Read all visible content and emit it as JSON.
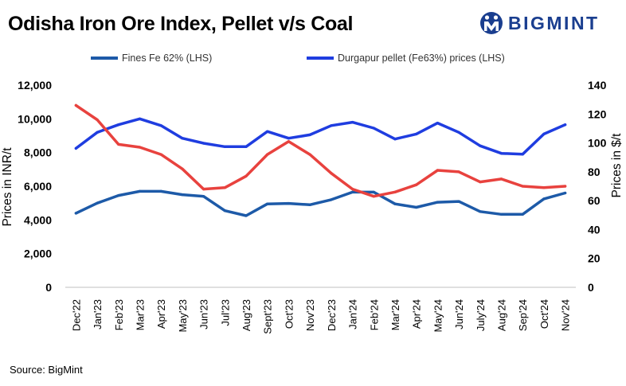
{
  "title": "Odisha Iron Ore Index, Pellet v/s Coal",
  "logo_text": "BIGMINT",
  "source": "Source: BigMint",
  "colors": {
    "fines": "#1d5aa8",
    "pellet": "#1f3de0",
    "coal": "#e8423e"
  },
  "chart_data": {
    "type": "line",
    "categories": [
      "Dec'22",
      "Jan'23",
      "Feb'23",
      "Mar'23",
      "Apr'23",
      "May'23",
      "Jun'23",
      "Jul'23",
      "Aug'23",
      "Sept'23",
      "Oct'23",
      "Nov'23",
      "Dec'23",
      "Jan'24",
      "Feb'24",
      "Mar'24",
      "Apr'24",
      "May'24",
      "Jun'24",
      "July'24",
      "Aug'24",
      "Sep'24",
      "Oct'24",
      "Nov'24"
    ],
    "ylabel": "Prices in INR/t",
    "y2label": "Prices in $/t",
    "ylim": [
      0,
      12000
    ],
    "y2lim": [
      0,
      140
    ],
    "yticks": [
      "0",
      "2,000",
      "4,000",
      "6,000",
      "8,000",
      "10,000",
      "12,000"
    ],
    "y2ticks": [
      "0",
      "20",
      "40",
      "60",
      "80",
      "100",
      "120",
      "140"
    ],
    "legend": [
      "Fines Fe 62% (LHS)",
      "Durgapur pellet (Fe63%) prices (LHS)"
    ],
    "series": [
      {
        "name": "Fines Fe 62% (LHS)",
        "axis": "left",
        "values": [
          4400,
          5000,
          5450,
          5700,
          5700,
          5500,
          5400,
          4550,
          4250,
          4950,
          4980,
          4900,
          5200,
          5650,
          5650,
          4950,
          4750,
          5050,
          5100,
          4500,
          4330,
          4330,
          5250,
          5600
        ]
      },
      {
        "name": "Durgapur pellet (Fe63%) prices (LHS)",
        "axis": "left",
        "values": [
          8250,
          9200,
          9650,
          10000,
          9600,
          8850,
          8550,
          8350,
          8350,
          9250,
          8850,
          9050,
          9600,
          9800,
          9450,
          8800,
          9100,
          9750,
          9200,
          8400,
          7950,
          7900,
          9100,
          9650
        ]
      },
      {
        "name": "Coal",
        "axis": "right",
        "values": [
          126,
          116,
          99,
          97,
          92,
          82,
          68,
          69,
          77,
          92,
          101,
          92,
          79,
          68,
          63,
          66,
          71,
          81,
          80,
          73,
          75,
          70,
          69,
          70
        ]
      }
    ]
  }
}
